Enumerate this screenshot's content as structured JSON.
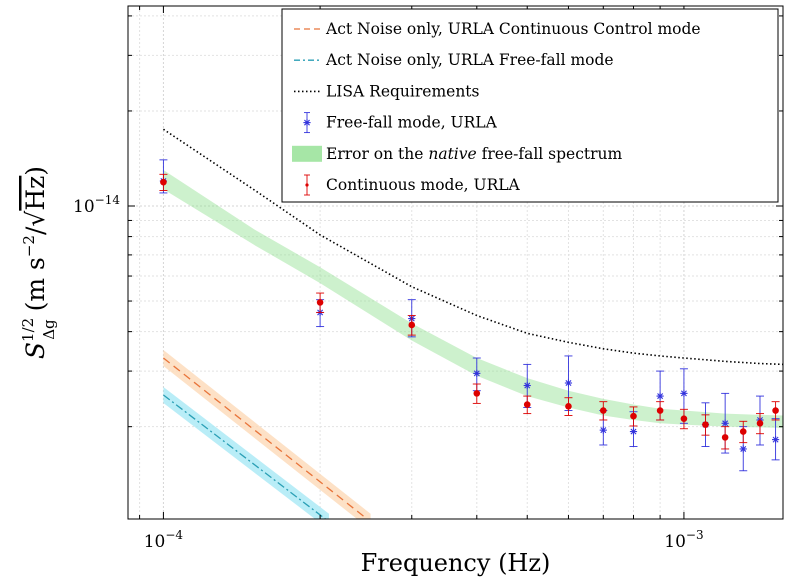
{
  "chart_data": {
    "type": "scatter",
    "xscale": "log",
    "yscale": "log",
    "xlim": [
      8.55e-05,
      0.00155
    ],
    "ylim": [
      1.02e-15,
      4.3e-14
    ],
    "xlabel": "Frequency (Hz)",
    "ylabel": "S_Δg^(1/2) (m s^-2/√Hz)",
    "ylabel_parts": {
      "main": "S",
      "sup": "1/2",
      "sub": "Δg",
      "unit_a": "m s",
      "unit_sup": "−2",
      "unit_b": "/",
      "unit_root": "Hz"
    },
    "x_ticks": [
      {
        "value": 0.0001,
        "base": "10",
        "exp": "−4"
      },
      {
        "value": 0.001,
        "base": "10",
        "exp": "−3"
      }
    ],
    "y_ticks": [
      {
        "value": 1e-14,
        "base": "10",
        "exp": "−14"
      }
    ],
    "grid": true,
    "legend_position": "top-right",
    "legend": [
      {
        "key": "act_cc",
        "text": "Act Noise only, URLA Continuous Control mode"
      },
      {
        "key": "act_ff",
        "text": "Act Noise only, URLA Free-fall mode"
      },
      {
        "key": "lisa",
        "text": "LISA Requirements"
      },
      {
        "key": "ff",
        "text": "Free-fall mode, URLA"
      },
      {
        "key": "band",
        "text_before": "Error on the ",
        "text_italic": "native",
        "text_after": " free-fall spectrum"
      },
      {
        "key": "cont",
        "text": "Continuous mode, URLA"
      }
    ],
    "colors": {
      "act_cc": "#e8743a",
      "act_ff": "#2a9fb5",
      "lisa": "#000000",
      "ff": "#3333dd",
      "cont": "#dd0000",
      "band": "#90e090",
      "act_cc_band": "#fcd9b8",
      "act_ff_band": "#a8e8f5"
    },
    "series": {
      "lisa": {
        "name": "LISA Requirements",
        "x": [
          0.0001,
          0.00015,
          0.0002,
          0.0003,
          0.0004,
          0.0005,
          0.0006,
          0.0007,
          0.0008,
          0.0009,
          0.001,
          0.0012,
          0.0014,
          0.00155
        ],
        "y": [
          1.75e-14,
          1.12e-14,
          8.1e-15,
          5.55e-15,
          4.5e-15,
          3.95e-15,
          3.7e-15,
          3.53e-15,
          3.42e-15,
          3.35e-15,
          3.3e-15,
          3.22e-15,
          3.17e-15,
          3.15e-15
        ]
      },
      "band": {
        "name": "Error on the native free-fall spectrum",
        "x": [
          0.0001,
          0.00015,
          0.0002,
          0.0003,
          0.0004,
          0.0005,
          0.0006,
          0.0007,
          0.0008,
          0.0009,
          0.001,
          0.0012,
          0.0014,
          0.00155
        ],
        "lower": [
          1.13e-14,
          7.5e-15,
          5.7e-15,
          3.75e-15,
          2.9e-15,
          2.5e-15,
          2.3e-15,
          2.17e-15,
          2.1e-15,
          2.05e-15,
          2.03e-15,
          2e-15,
          1.99e-15,
          1.98e-15
        ],
        "upper": [
          1.3e-14,
          8.4e-15,
          6.4e-15,
          4.25e-15,
          3.3e-15,
          2.85e-15,
          2.6e-15,
          2.45e-15,
          2.35e-15,
          2.28e-15,
          2.25e-15,
          2.2e-15,
          2.18e-15,
          2.17e-15
        ]
      },
      "act_cc": {
        "name": "Act Noise only, URLA Continuous Control mode",
        "x": [
          0.0001,
          0.00025
        ],
        "y": [
          3.3e-15,
          1e-15
        ],
        "band_factor": 1.06
      },
      "act_ff": {
        "name": "Act Noise only, URLA Free-fall mode",
        "x": [
          0.0001,
          0.000208
        ],
        "y": [
          2.52e-15,
          1e-15
        ],
        "band_factor": 1.06
      },
      "ff": {
        "name": "Free-fall mode, URLA",
        "x": [
          0.0001,
          0.0002,
          0.0003,
          0.0004,
          0.0005,
          0.0006,
          0.0007,
          0.0008,
          0.0009,
          0.001,
          0.0011,
          0.0012,
          0.0013,
          0.0014,
          0.0015
        ],
        "y": [
          1.2e-14,
          4.6e-15,
          4.4e-15,
          2.95e-15,
          2.7e-15,
          2.75e-15,
          1.95e-15,
          1.93e-15,
          2.5e-15,
          2.55e-15,
          2.03e-15,
          2.05e-15,
          1.7e-15,
          2.1e-15,
          1.82e-15
        ],
        "err_low": [
          1e-15,
          4.5e-16,
          5.5e-16,
          3.5e-16,
          4e-16,
          5e-16,
          2e-16,
          2e-16,
          4e-16,
          5e-16,
          3e-16,
          4e-16,
          2.5e-16,
          3.5e-16,
          2.5e-16
        ],
        "err_high": [
          2e-15,
          4.5e-16,
          6.5e-16,
          3.5e-16,
          4.5e-16,
          6e-16,
          3e-16,
          3e-16,
          5e-16,
          5e-16,
          3.5e-16,
          5e-16,
          3e-16,
          4e-16,
          3e-16
        ]
      },
      "cont": {
        "name": "Continuous mode, URLA",
        "x": [
          0.0001,
          0.0002,
          0.0003,
          0.0004,
          0.0005,
          0.0006,
          0.0007,
          0.0008,
          0.0009,
          0.001,
          0.0011,
          0.0012,
          0.0013,
          0.0014,
          0.0015
        ],
        "y": [
          1.19e-14,
          4.95e-15,
          4.2e-15,
          2.55e-15,
          2.35e-15,
          2.32e-15,
          2.25e-15,
          2.16e-15,
          2.25e-15,
          2.12e-15,
          2.03e-15,
          1.85e-15,
          1.93e-15,
          2.05e-15,
          2.25e-15
        ],
        "err_low": [
          7e-16,
          3.5e-16,
          3e-16,
          1.8e-16,
          1.5e-16,
          1.5e-16,
          1.5e-16,
          1.5e-16,
          1.5e-16,
          1.5e-16,
          1.5e-16,
          1.5e-16,
          1.5e-16,
          1.5e-16,
          1.5e-16
        ],
        "err_high": [
          7e-16,
          3.5e-16,
          3e-16,
          1.8e-16,
          1.5e-16,
          1.5e-16,
          1.5e-16,
          1.5e-16,
          1.5e-16,
          1.5e-16,
          1.5e-16,
          1.5e-16,
          1.5e-16,
          1.5e-16,
          1.5e-16
        ]
      }
    }
  }
}
